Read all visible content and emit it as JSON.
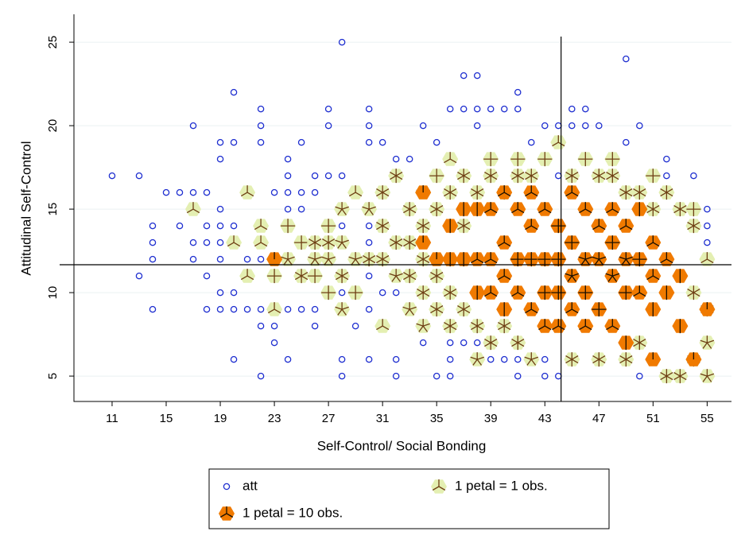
{
  "chart_data": {
    "type": "sunflower",
    "xlabel": "Self-Control/ Social Bonding",
    "ylabel": "Attitudinal Self-Control",
    "xlim": [
      8.18,
      56.8
    ],
    "ylim": [
      3.48,
      26.67
    ],
    "xticks": [
      11,
      15,
      19,
      23,
      27,
      31,
      35,
      39,
      43,
      47,
      51,
      55
    ],
    "yticks": [
      5,
      10,
      15,
      20,
      25
    ],
    "grid": true,
    "reference_lines": {
      "x": 44.2,
      "y": 11.67
    },
    "series": [
      {
        "name": "att",
        "kind": "points",
        "color": "#1f2fd0",
        "x": [
          11,
          13,
          13,
          14,
          14,
          14,
          14,
          15,
          16,
          16,
          17,
          17,
          17,
          17,
          18,
          18,
          18,
          18,
          18,
          19,
          19,
          19,
          19,
          19,
          19,
          19,
          19,
          20,
          20,
          20,
          20,
          20,
          20,
          21,
          21,
          22,
          22,
          22,
          22,
          22,
          22,
          22,
          23,
          23,
          23,
          23,
          24,
          24,
          24,
          24,
          24,
          24,
          25,
          25,
          25,
          25,
          26,
          26,
          26,
          26,
          27,
          27,
          27,
          28,
          28,
          28,
          28,
          28,
          28,
          29,
          30,
          30,
          30,
          30,
          30,
          30,
          30,
          30,
          31,
          31,
          32,
          32,
          32,
          32,
          33,
          34,
          34,
          35,
          35,
          36,
          36,
          36,
          36,
          37,
          37,
          37,
          38,
          38,
          38,
          38,
          39,
          39,
          40,
          40,
          41,
          41,
          41,
          41,
          42,
          43,
          43,
          43,
          44,
          44,
          44,
          45,
          45,
          46,
          46,
          47,
          49,
          49,
          50,
          50,
          52,
          52,
          54,
          55,
          55,
          55
        ],
        "values": [
          17,
          17,
          11,
          14,
          13,
          12,
          9,
          16,
          16,
          14,
          16,
          20,
          13,
          12,
          16,
          14,
          13,
          11,
          9,
          19,
          18,
          15,
          14,
          13,
          12,
          10,
          9,
          22,
          19,
          14,
          10,
          9,
          6,
          12,
          9,
          21,
          20,
          19,
          12,
          9,
          8,
          5,
          16,
          9,
          8,
          7,
          18,
          17,
          16,
          15,
          9,
          6,
          19,
          16,
          15,
          9,
          17,
          16,
          9,
          8,
          21,
          20,
          17,
          25,
          17,
          14,
          10,
          6,
          5,
          8,
          21,
          20,
          19,
          14,
          13,
          11,
          9,
          6,
          19,
          10,
          18,
          10,
          6,
          5,
          18,
          7,
          20,
          19,
          5,
          21,
          7,
          6,
          5,
          23,
          21,
          7,
          23,
          21,
          20,
          7,
          21,
          6,
          21,
          6,
          22,
          21,
          6,
          5,
          19,
          20,
          6,
          5,
          20,
          17,
          5,
          21,
          20,
          21,
          20,
          20,
          24,
          19,
          20,
          5,
          18,
          17,
          17,
          15,
          14,
          13
        ]
      },
      {
        "name": "1 petal = 1 obs.",
        "kind": "sunflower",
        "color": "#e4efb2",
        "petal_color": "#6e3f14",
        "x": [
          17,
          20,
          21,
          21,
          22,
          22,
          23,
          23,
          24,
          24,
          25,
          25,
          26,
          26,
          26,
          27,
          27,
          27,
          27,
          28,
          28,
          28,
          28,
          29,
          29,
          29,
          30,
          30,
          31,
          31,
          31,
          31,
          32,
          32,
          32,
          33,
          33,
          33,
          33,
          34,
          34,
          34,
          34,
          34,
          35,
          35,
          35,
          35,
          36,
          36,
          36,
          36,
          37,
          37,
          37,
          38,
          38,
          38,
          39,
          39,
          39,
          40,
          40,
          41,
          41,
          41,
          42,
          42,
          43,
          44,
          45,
          45,
          46,
          47,
          47,
          48,
          48,
          49,
          49,
          50,
          50,
          51,
          51,
          52,
          52,
          53,
          53,
          54,
          54,
          54,
          54,
          55,
          55,
          55,
          55
        ],
        "values": [
          15,
          13,
          16,
          11,
          14,
          13,
          11,
          9,
          14,
          12,
          13,
          11,
          13,
          12,
          11,
          14,
          13,
          12,
          10,
          15,
          13,
          11,
          9,
          16,
          12,
          10,
          15,
          12,
          16,
          14,
          12,
          8,
          17,
          13,
          11,
          15,
          13,
          11,
          9,
          16,
          14,
          12,
          10,
          8,
          17,
          15,
          11,
          9,
          18,
          16,
          10,
          8,
          17,
          14,
          9,
          16,
          8,
          6,
          18,
          17,
          7,
          16,
          8,
          18,
          17,
          7,
          17,
          6,
          18,
          19,
          17,
          6,
          18,
          17,
          6,
          18,
          17,
          16,
          6,
          16,
          7,
          17,
          15,
          16,
          5,
          15,
          5,
          15,
          14,
          10,
          6,
          12,
          9,
          7,
          5
        ],
        "petals": [
          3,
          3,
          3,
          3,
          3,
          3,
          4,
          3,
          4,
          5,
          4,
          6,
          6,
          5,
          4,
          4,
          6,
          5,
          4,
          5,
          5,
          6,
          5,
          3,
          5,
          4,
          5,
          6,
          6,
          6,
          6,
          3,
          6,
          6,
          5,
          6,
          6,
          6,
          5,
          5,
          6,
          6,
          6,
          5,
          4,
          6,
          6,
          6,
          3,
          6,
          6,
          6,
          6,
          6,
          6,
          6,
          6,
          5,
          4,
          6,
          6,
          6,
          6,
          4,
          6,
          6,
          6,
          5,
          4,
          3,
          6,
          6,
          4,
          6,
          6,
          4,
          6,
          6,
          6,
          6,
          6,
          4,
          6,
          6,
          6,
          6,
          6,
          4,
          6,
          6,
          6,
          3,
          6,
          5,
          5
        ]
      },
      {
        "name": "1 petal = 10 obs.",
        "kind": "sunflower",
        "color": "#f07a00",
        "petal_color": "#1a0f00",
        "x": [
          23,
          34,
          34,
          35,
          36,
          36,
          37,
          37,
          38,
          38,
          38,
          39,
          39,
          39,
          40,
          40,
          40,
          40,
          41,
          41,
          41,
          42,
          42,
          42,
          42,
          43,
          43,
          43,
          43,
          44,
          44,
          44,
          44,
          45,
          45,
          45,
          45,
          46,
          46,
          46,
          46,
          47,
          47,
          47,
          48,
          48,
          48,
          48,
          49,
          49,
          49,
          49,
          50,
          50,
          50,
          51,
          51,
          51,
          51,
          52,
          52,
          53,
          53,
          54,
          55
        ],
        "values": [
          12,
          16,
          13,
          12,
          14,
          12,
          15,
          12,
          15,
          12,
          10,
          15,
          12,
          10,
          16,
          13,
          11,
          9,
          15,
          12,
          10,
          16,
          14,
          12,
          9,
          15,
          12,
          10,
          8,
          14,
          12,
          10,
          8,
          16,
          13,
          11,
          9,
          15,
          12,
          10,
          8,
          14,
          12,
          9,
          15,
          13,
          11,
          8,
          14,
          12,
          10,
          7,
          15,
          12,
          10,
          13,
          11,
          9,
          6,
          12,
          10,
          11,
          8,
          6,
          9
        ],
        "petals": [
          1,
          1,
          1,
          1,
          2,
          2,
          2,
          2,
          2,
          3,
          2,
          3,
          3,
          3,
          3,
          3,
          3,
          2,
          3,
          4,
          3,
          3,
          3,
          4,
          3,
          3,
          4,
          4,
          3,
          4,
          4,
          4,
          3,
          3,
          4,
          5,
          3,
          3,
          5,
          4,
          3,
          3,
          5,
          4,
          3,
          4,
          5,
          3,
          3,
          5,
          4,
          2,
          2,
          4,
          3,
          3,
          3,
          2,
          1,
          3,
          2,
          2,
          2,
          1,
          1
        ]
      }
    ]
  }
}
